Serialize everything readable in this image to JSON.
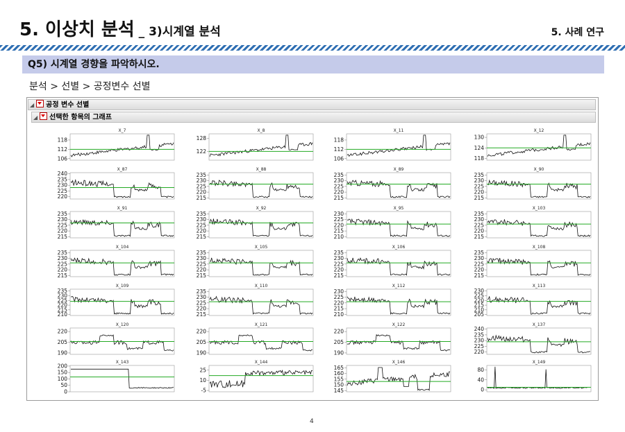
{
  "slide": {
    "title_main": "5. 이상치 분석",
    "title_sub": "_ 3)시계열 분석",
    "section": "5. 사례 연구",
    "question": "Q5) 시계열 경향을 파악하시오.",
    "breadcrumb": "분석 > 선별 > 공정변수 선별",
    "page_number": "4"
  },
  "panel": {
    "outer_header": "공정 변수 선별",
    "inner_header": "선택한 항목의 그래프",
    "accent": "#22aa22"
  },
  "chart_data": [
    {
      "type": "line",
      "title": "X_7",
      "yticks": [
        118,
        112,
        106
      ],
      "ylim": [
        105,
        122
      ],
      "mean": 112,
      "shape": "rise"
    },
    {
      "type": "line",
      "title": "X_8",
      "yticks": [
        128,
        122
      ],
      "ylim": [
        118,
        130
      ],
      "mean": 122,
      "shape": "rise"
    },
    {
      "type": "line",
      "title": "X_11",
      "yticks": [
        118,
        112,
        106
      ],
      "ylim": [
        105,
        122
      ],
      "mean": 112,
      "shape": "rise"
    },
    {
      "type": "line",
      "title": "X_12",
      "yticks": [
        130,
        124,
        118
      ],
      "ylim": [
        117,
        132
      ],
      "mean": 124,
      "shape": "rise"
    },
    {
      "type": "line",
      "title": "X_87",
      "yticks": [
        240,
        235,
        230,
        225,
        220
      ],
      "ylim": [
        218,
        241
      ],
      "mean": 228,
      "shape": "steps"
    },
    {
      "type": "line",
      "title": "X_88",
      "yticks": [
        235,
        230,
        225,
        220,
        215
      ],
      "ylim": [
        214,
        237
      ],
      "mean": 227,
      "shape": "steps"
    },
    {
      "type": "line",
      "title": "X_89",
      "yticks": [
        235,
        230,
        225,
        220,
        215
      ],
      "ylim": [
        214,
        237
      ],
      "mean": 227,
      "shape": "steps"
    },
    {
      "type": "line",
      "title": "X_90",
      "yticks": [
        235,
        230,
        225,
        220,
        215
      ],
      "ylim": [
        214,
        237
      ],
      "mean": 227,
      "shape": "steps"
    },
    {
      "type": "line",
      "title": "X_91",
      "yticks": [
        235,
        230,
        225,
        220,
        215
      ],
      "ylim": [
        214,
        237
      ],
      "mean": 227,
      "shape": "steps"
    },
    {
      "type": "line",
      "title": "X_92",
      "yticks": [
        235,
        230,
        225,
        220,
        215
      ],
      "ylim": [
        214,
        237
      ],
      "mean": 227,
      "shape": "steps"
    },
    {
      "type": "line",
      "title": "X_95",
      "yticks": [
        230,
        225,
        220,
        215,
        210
      ],
      "ylim": [
        209,
        232
      ],
      "mean": 221,
      "shape": "steps"
    },
    {
      "type": "line",
      "title": "X_103",
      "yticks": [
        235,
        230,
        225,
        220,
        215
      ],
      "ylim": [
        214,
        237
      ],
      "mean": 226,
      "shape": "steps"
    },
    {
      "type": "line",
      "title": "X_104",
      "yticks": [
        235,
        230,
        225,
        220,
        215
      ],
      "ylim": [
        214,
        237
      ],
      "mean": 226,
      "shape": "steps"
    },
    {
      "type": "line",
      "title": "X_105",
      "yticks": [
        235,
        230,
        225,
        220,
        215
      ],
      "ylim": [
        214,
        237
      ],
      "mean": 226,
      "shape": "steps"
    },
    {
      "type": "line",
      "title": "X_106",
      "yticks": [
        235,
        230,
        225,
        220,
        215
      ],
      "ylim": [
        214,
        237
      ],
      "mean": 226,
      "shape": "steps"
    },
    {
      "type": "line",
      "title": "X_108",
      "yticks": [
        235,
        230,
        225,
        220,
        215
      ],
      "ylim": [
        214,
        237
      ],
      "mean": 226,
      "shape": "steps"
    },
    {
      "type": "line",
      "title": "X_109",
      "yticks": [
        235,
        230,
        225,
        220,
        215,
        210
      ],
      "ylim": [
        209,
        237
      ],
      "mean": 224,
      "shape": "steps"
    },
    {
      "type": "line",
      "title": "X_110",
      "yticks": [
        235,
        230,
        225,
        220,
        215
      ],
      "ylim": [
        214,
        237
      ],
      "mean": 226,
      "shape": "steps"
    },
    {
      "type": "line",
      "title": "X_112",
      "yticks": [
        230,
        225,
        220,
        215,
        210
      ],
      "ylim": [
        209,
        232
      ],
      "mean": 221,
      "shape": "steps"
    },
    {
      "type": "line",
      "title": "X_113",
      "yticks": [
        230,
        225,
        220,
        215,
        210,
        205
      ],
      "ylim": [
        204,
        232
      ],
      "mean": 219,
      "shape": "steps"
    },
    {
      "type": "line",
      "title": "X_120",
      "yticks": [
        220,
        205,
        190
      ],
      "ylim": [
        188,
        225
      ],
      "mean": 206,
      "shape": "hump"
    },
    {
      "type": "line",
      "title": "X_121",
      "yticks": [
        220,
        205,
        190
      ],
      "ylim": [
        188,
        225
      ],
      "mean": 206,
      "shape": "hump"
    },
    {
      "type": "line",
      "title": "X_122",
      "yticks": [
        220,
        205,
        190
      ],
      "ylim": [
        188,
        225
      ],
      "mean": 206,
      "shape": "hump"
    },
    {
      "type": "line",
      "title": "X_137",
      "yticks": [
        240,
        235,
        230,
        225,
        220
      ],
      "ylim": [
        218,
        241
      ],
      "mean": 229,
      "shape": "steps"
    },
    {
      "type": "line",
      "title": "X_143",
      "yticks": [
        200,
        150,
        100,
        50,
        0
      ],
      "ylim": [
        0,
        205
      ],
      "mean": 115,
      "shape": "drop"
    },
    {
      "type": "line",
      "title": "X_144",
      "yticks": [
        25,
        10,
        -5
      ],
      "ylim": [
        -7,
        32
      ],
      "mean": 17,
      "shape": "noisyrise"
    },
    {
      "type": "line",
      "title": "X_146",
      "yticks": [
        165,
        160,
        155,
        150,
        145
      ],
      "ylim": [
        144,
        167
      ],
      "mean": 153,
      "shape": "dips"
    },
    {
      "type": "line",
      "title": "X_149",
      "yticks": [
        80,
        40,
        0
      ],
      "ylim": [
        -8,
        98
      ],
      "mean": 10,
      "shape": "spikes"
    }
  ]
}
